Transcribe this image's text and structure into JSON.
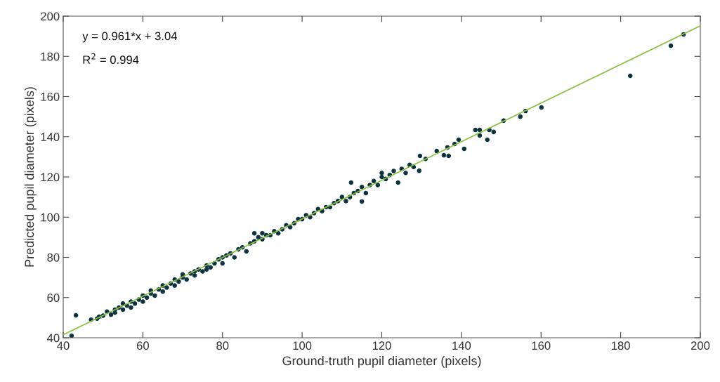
{
  "chart_data": {
    "type": "scatter",
    "xlabel": "Ground-truth pupil diameter (pixels)",
    "ylabel": "Predicted pupil diameter (pixels)",
    "annotations": [
      "y = 0.961*x + 3.04",
      "R$^{2}$ = 0.994"
    ],
    "xlim": [
      40,
      200
    ],
    "ylim": [
      40,
      200
    ],
    "xticks": [
      40,
      60,
      80,
      100,
      120,
      140,
      160,
      180,
      200
    ],
    "yticks": [
      40,
      60,
      80,
      100,
      120,
      140,
      160,
      180,
      200
    ],
    "grid": false,
    "legend": false,
    "marker": "circle",
    "series": [
      {
        "color": "#0d3340",
        "x": [
          42.1,
          43.2,
          47,
          48.5,
          49,
          50,
          51,
          52,
          53,
          53,
          54,
          55,
          55,
          56,
          57,
          57,
          58,
          59,
          60,
          60,
          61,
          62,
          62,
          63,
          64,
          65,
          65,
          66,
          67,
          68,
          68,
          69,
          70,
          70,
          71,
          72,
          73,
          73,
          74,
          75,
          76,
          76,
          77,
          78,
          79,
          80,
          80,
          81,
          82,
          83,
          84,
          85,
          86,
          87,
          88,
          88,
          89,
          90,
          90,
          91,
          92,
          93,
          94,
          95,
          96,
          97,
          98,
          99,
          100,
          101,
          102,
          103,
          104,
          105,
          106,
          107,
          108,
          109,
          110,
          111,
          112,
          112.3,
          113,
          114,
          115,
          115,
          116,
          117,
          118,
          119,
          120,
          120,
          121,
          122,
          123,
          124.1,
          125,
          126,
          127,
          128,
          129.4,
          129.6,
          131,
          133.8,
          135.6,
          136.5,
          136.8,
          138.3,
          139.3,
          140.7,
          143.5,
          144.6,
          144.6,
          146.5,
          147,
          148.1,
          150.6,
          154.8,
          156.1,
          160.1,
          182.4,
          192.6,
          195.8
        ],
        "values": [
          41,
          51.2,
          49,
          49.5,
          50.5,
          51,
          53,
          51.5,
          52.5,
          54,
          55,
          54,
          57,
          56,
          55,
          58,
          57,
          59,
          61,
          58,
          60,
          62,
          63.5,
          61,
          64,
          66,
          63,
          65,
          67,
          66,
          69,
          68,
          70,
          71.5,
          69,
          72,
          73,
          71,
          74,
          73,
          76,
          74,
          75,
          77,
          79,
          80,
          77,
          81,
          82,
          80,
          84,
          85,
          83,
          87,
          88,
          92,
          90,
          89,
          92,
          91,
          91,
          93,
          92,
          94,
          96,
          95,
          97,
          99,
          99,
          101,
          100,
          102,
          104,
          103,
          105,
          105,
          107,
          108,
          110,
          108,
          110,
          117.2,
          112,
          113,
          107.8,
          115,
          112,
          116,
          118,
          116,
          120,
          122,
          119,
          121,
          123,
          117.2,
          124,
          122,
          126,
          125,
          123.1,
          130.5,
          129,
          132.9,
          130.8,
          134.7,
          130.5,
          136.4,
          138.5,
          134,
          143.4,
          143.4,
          140.6,
          138.5,
          143.4,
          142.4,
          148,
          150,
          152.8,
          154.6,
          170.3,
          185.3,
          190.9
        ]
      },
      {
        "type": "line",
        "color": "#8dc04a",
        "marker": "none",
        "line_style": "solid",
        "x": [
          40,
          200
        ],
        "values": [
          41.5,
          195.2
        ]
      }
    ]
  }
}
